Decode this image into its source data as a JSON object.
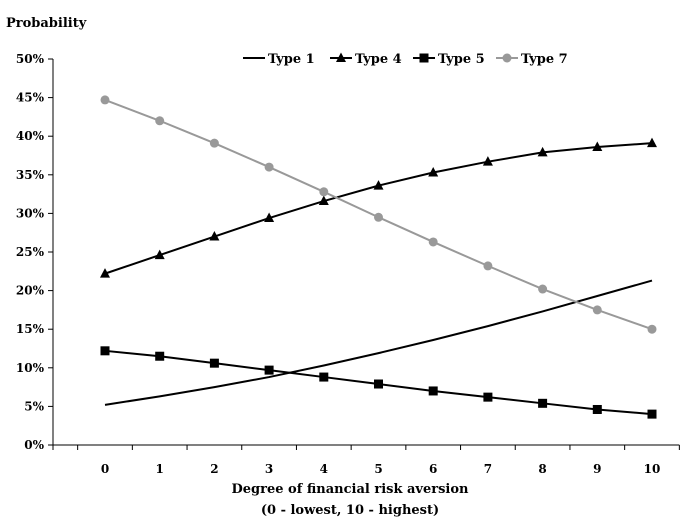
{
  "chart_data": {
    "type": "line",
    "title": "",
    "ylabel": "Probability",
    "xlabel": "Degree of financial risk aversion",
    "xlabel_sub": "(0 - lowest, 10 - highest)",
    "ylim": [
      0,
      50
    ],
    "xlim": [
      -1,
      10.5
    ],
    "grid": false,
    "legend_position": "top-right",
    "y_ticks": [
      "0%",
      "5%",
      "10%",
      "15%",
      "20%",
      "25%",
      "30%",
      "35%",
      "40%",
      "45%",
      "50%"
    ],
    "y_tick_values": [
      0,
      5,
      10,
      15,
      20,
      25,
      30,
      35,
      40,
      45,
      50
    ],
    "categories": [
      "0",
      "1",
      "2",
      "3",
      "4",
      "5",
      "6",
      "7",
      "8",
      "9",
      "10"
    ],
    "x": [
      0,
      1,
      2,
      3,
      4,
      5,
      6,
      7,
      8,
      9,
      10
    ],
    "series": [
      {
        "name": "Type 1",
        "marker": "none",
        "color": "#000000",
        "values": [
          5.2,
          6.3,
          7.5,
          8.8,
          10.3,
          11.9,
          13.6,
          15.4,
          17.3,
          19.3,
          21.3
        ]
      },
      {
        "name": "Type 4",
        "marker": "triangle",
        "color": "#000000",
        "values": [
          22.2,
          24.6,
          27.0,
          29.4,
          31.6,
          33.6,
          35.3,
          36.7,
          37.9,
          38.6,
          39.1
        ]
      },
      {
        "name": "Type 5",
        "marker": "square",
        "color": "#000000",
        "values": [
          12.2,
          11.5,
          10.6,
          9.7,
          8.8,
          7.9,
          7.0,
          6.2,
          5.4,
          4.6,
          4.0
        ]
      },
      {
        "name": "Type 7",
        "marker": "circle",
        "color": "#999999",
        "values": [
          44.7,
          42.0,
          39.1,
          36.0,
          32.8,
          29.5,
          26.3,
          23.2,
          20.2,
          17.5,
          15.0
        ]
      }
    ]
  }
}
